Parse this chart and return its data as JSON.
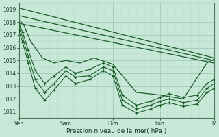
{
  "xlabel": "Pression niveau de la mer( hPa )",
  "bg_color": "#c8e8d8",
  "plot_bg_color": "#c8e8d8",
  "grid_major_color": "#a0c8b8",
  "grid_minor_color": "#b4d8c8",
  "line_color": "#1a5c28",
  "ylim": [
    1010.5,
    1019.5
  ],
  "yticks": [
    1011,
    1012,
    1013,
    1014,
    1015,
    1016,
    1017,
    1018,
    1019
  ],
  "xlim": [
    0,
    4.15
  ],
  "xtick_labels": [
    "Ven",
    "Sam",
    "Dim",
    "Lun",
    "M"
  ],
  "xtick_positions": [
    0.0,
    1.0,
    2.0,
    3.0,
    4.15
  ],
  "series": [
    {
      "x": [
        0.0,
        4.15
      ],
      "y": [
        1019.1,
        1015.2
      ],
      "has_markers": false,
      "lw": 0.9
    },
    {
      "x": [
        0.0,
        4.15
      ],
      "y": [
        1018.5,
        1015.0
      ],
      "has_markers": false,
      "lw": 0.9
    },
    {
      "x": [
        0.0,
        4.15
      ],
      "y": [
        1017.9,
        1014.8
      ],
      "has_markers": false,
      "lw": 0.9
    },
    {
      "x": [
        0.0,
        0.1,
        0.25,
        0.5,
        0.75,
        1.0,
        1.3,
        1.6,
        2.0,
        2.5,
        3.0,
        3.5,
        4.0,
        4.15
      ],
      "y": [
        1018.2,
        1017.8,
        1016.5,
        1015.2,
        1014.8,
        1015.0,
        1014.8,
        1015.2,
        1014.7,
        1012.5,
        1012.3,
        1012.0,
        1014.8,
        1015.1
      ],
      "has_markers": false,
      "lw": 0.9
    },
    {
      "x": [
        0.0,
        0.08,
        0.2,
        0.35,
        0.55,
        0.75,
        1.0,
        1.2,
        1.5,
        1.8,
        2.0,
        2.2,
        2.5,
        2.8,
        3.0,
        3.2,
        3.5,
        3.8,
        4.0,
        4.15
      ],
      "y": [
        1017.9,
        1017.2,
        1015.8,
        1014.2,
        1013.2,
        1013.8,
        1014.5,
        1014.0,
        1014.3,
        1014.8,
        1014.5,
        1012.3,
        1011.5,
        1011.8,
        1012.1,
        1012.4,
        1012.1,
        1012.3,
        1013.2,
        1013.5
      ],
      "has_markers": true,
      "lw": 0.8
    },
    {
      "x": [
        0.0,
        0.08,
        0.2,
        0.35,
        0.55,
        0.75,
        1.0,
        1.2,
        1.5,
        1.8,
        2.0,
        2.2,
        2.5,
        2.8,
        3.0,
        3.2,
        3.5,
        3.8,
        4.0,
        4.15
      ],
      "y": [
        1017.6,
        1016.8,
        1015.3,
        1013.5,
        1012.5,
        1013.2,
        1014.2,
        1013.7,
        1013.8,
        1014.5,
        1014.2,
        1011.9,
        1011.2,
        1011.5,
        1011.8,
        1012.0,
        1011.7,
        1011.9,
        1012.8,
        1013.2
      ],
      "has_markers": true,
      "lw": 0.8
    },
    {
      "x": [
        0.0,
        0.08,
        0.2,
        0.35,
        0.55,
        0.75,
        1.0,
        1.2,
        1.5,
        1.8,
        2.0,
        2.2,
        2.5,
        2.8,
        3.0,
        3.2,
        3.5,
        3.8,
        4.0,
        4.15
      ],
      "y": [
        1017.3,
        1016.4,
        1014.8,
        1012.8,
        1011.9,
        1012.7,
        1013.8,
        1013.2,
        1013.5,
        1014.2,
        1013.8,
        1011.5,
        1010.9,
        1011.2,
        1011.5,
        1011.7,
        1011.4,
        1011.6,
        1012.5,
        1012.8
      ],
      "has_markers": true,
      "lw": 0.8
    }
  ]
}
